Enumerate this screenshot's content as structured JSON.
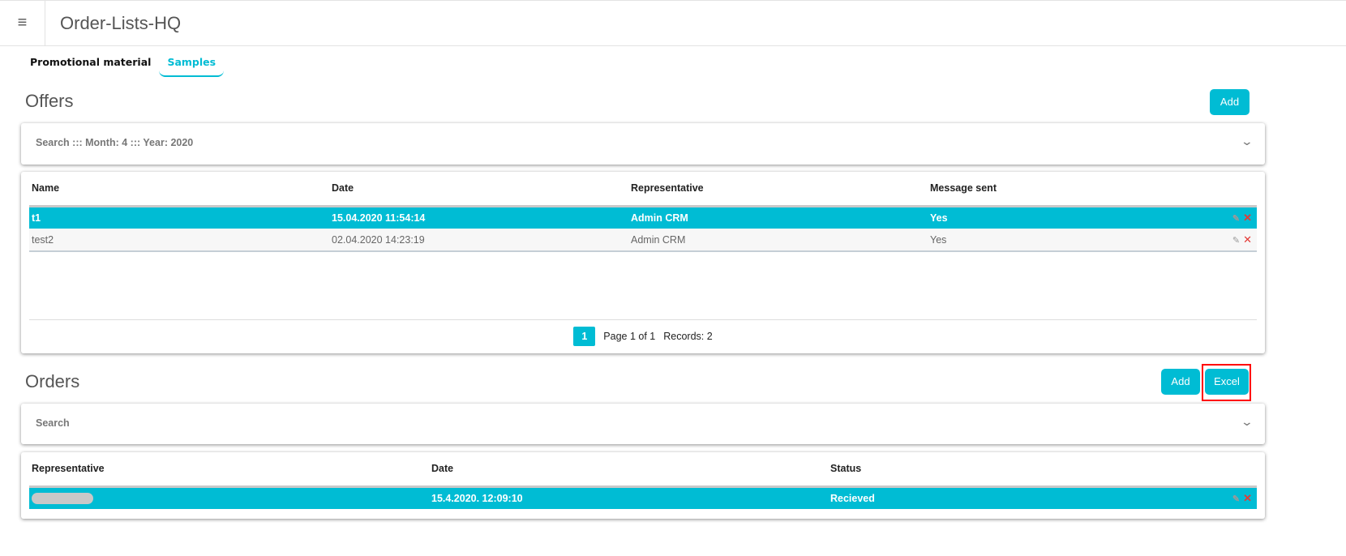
{
  "header": {
    "title": "Order-Lists-HQ",
    "menu_icon": "hamburger-icon"
  },
  "tabs": [
    {
      "label": "Promotional material",
      "active": false
    },
    {
      "label": "Samples",
      "active": true
    }
  ],
  "offers": {
    "title": "Offers",
    "add_label": "Add",
    "search_summary": "Search ::: Month: 4 ::: Year: 2020",
    "columns": [
      "Name",
      "Date",
      "Representative",
      "Message sent"
    ],
    "rows": [
      [
        "t1",
        "15.04.2020 11:54:14",
        "Admin CRM",
        "Yes"
      ],
      [
        "test2",
        "02.04.2020 14:23:19",
        "Admin CRM",
        "Yes"
      ]
    ],
    "pager": {
      "current": "1",
      "page_text": "Page 1 of 1",
      "records_text": "Records: 2"
    }
  },
  "orders": {
    "title": "Orders",
    "add_label": "Add",
    "excel_label": "Excel",
    "search_summary": "Search",
    "columns": [
      "Representative",
      "Date",
      "Status"
    ],
    "rows": [
      [
        "",
        "15.4.2020. 12:09:10",
        "Recieved"
      ]
    ]
  },
  "colors": {
    "accent": "#00bcd4",
    "highlight": "#ff0000"
  }
}
